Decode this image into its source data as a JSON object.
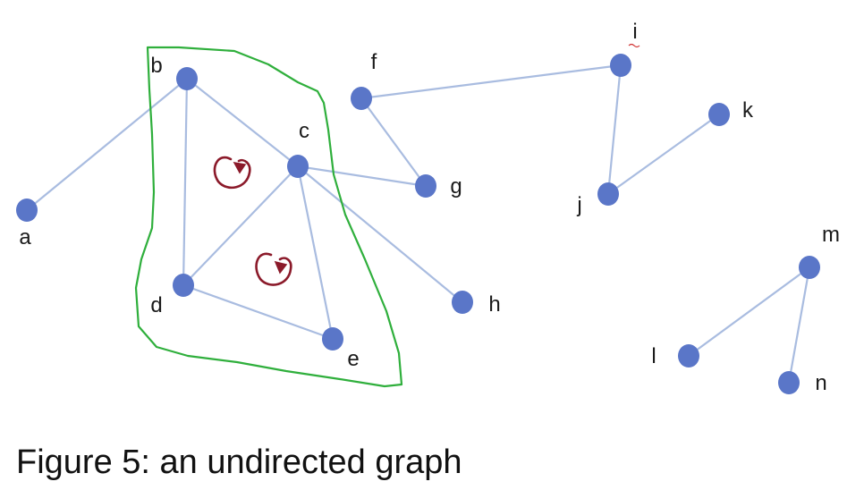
{
  "graph": {
    "type": "undirected",
    "nodes": [
      {
        "id": "a",
        "label": "a"
      },
      {
        "id": "b",
        "label": "b"
      },
      {
        "id": "c",
        "label": "c"
      },
      {
        "id": "d",
        "label": "d"
      },
      {
        "id": "e",
        "label": "e"
      },
      {
        "id": "f",
        "label": "f"
      },
      {
        "id": "g",
        "label": "g"
      },
      {
        "id": "h",
        "label": "h"
      },
      {
        "id": "i",
        "label": "i"
      },
      {
        "id": "j",
        "label": "j"
      },
      {
        "id": "k",
        "label": "k"
      },
      {
        "id": "l",
        "label": "l"
      },
      {
        "id": "m",
        "label": "m"
      },
      {
        "id": "n",
        "label": "n"
      }
    ],
    "edges": [
      [
        "a",
        "b"
      ],
      [
        "b",
        "c"
      ],
      [
        "b",
        "d"
      ],
      [
        "c",
        "d"
      ],
      [
        "c",
        "e"
      ],
      [
        "d",
        "e"
      ],
      [
        "c",
        "g"
      ],
      [
        "c",
        "h"
      ],
      [
        "f",
        "g"
      ],
      [
        "f",
        "i"
      ],
      [
        "i",
        "j"
      ],
      [
        "j",
        "k"
      ],
      [
        "m",
        "l"
      ],
      [
        "m",
        "n"
      ]
    ],
    "highlighted_region": [
      "b",
      "c",
      "d",
      "e"
    ],
    "cycle_marks": 2
  },
  "colors": {
    "node": "#5A76C8",
    "edge": "#A9BCE0",
    "region_outline": "#2FAF3C",
    "cycle_mark": "#8B1A2A"
  },
  "caption": "Figure 5: an undirected graph"
}
